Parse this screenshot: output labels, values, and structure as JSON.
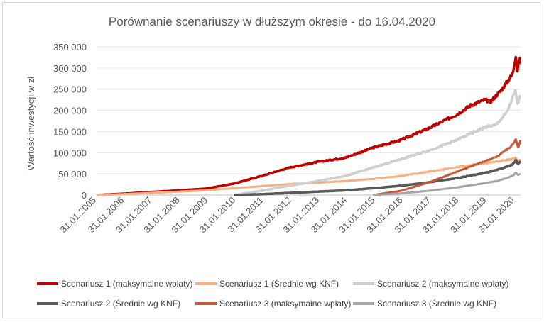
{
  "chart_data": {
    "type": "line",
    "title": "Porównanie scenariuszy w dłuższym okresie - do 16.04.2020",
    "xlabel": "",
    "ylabel": "Wartość inwestycji w zł",
    "ylim": [
      0,
      350000
    ],
    "yticks": [
      0,
      50000,
      100000,
      150000,
      200000,
      250000,
      300000,
      350000
    ],
    "ytick_labels": [
      "0",
      "50 000",
      "100 000",
      "150 000",
      "200 000",
      "250 000",
      "300 000",
      "350 000"
    ],
    "x_range": [
      2005.08,
      2020.29
    ],
    "xtick_labels": [
      "31.01.2005",
      "31.01.2006",
      "31.01.2007",
      "31.01.2008",
      "31.01.2009",
      "31.01.2010",
      "31.01.2011",
      "31.01.2012",
      "31.01.2013",
      "31.01.2014",
      "31.01.2015",
      "31.01.2016",
      "31.01.2017",
      "31.01.2018",
      "31.01.2019",
      "31.01.2020"
    ],
    "grid": true,
    "legend_position": "bottom",
    "series": [
      {
        "name": "Scenariusz 1 (maksymalne wpłaty)",
        "color": "#c00000",
        "width": 3.5,
        "points": [
          [
            2005.08,
            0
          ],
          [
            2006,
            3000
          ],
          [
            2007,
            7000
          ],
          [
            2008,
            11000
          ],
          [
            2009,
            15000
          ],
          [
            2010,
            27000
          ],
          [
            2011,
            45000
          ],
          [
            2012,
            65000
          ],
          [
            2013,
            78000
          ],
          [
            2014,
            88000
          ],
          [
            2015,
            112000
          ],
          [
            2016,
            130000
          ],
          [
            2017,
            158000
          ],
          [
            2018,
            190000
          ],
          [
            2018.5,
            212000
          ],
          [
            2019,
            225000
          ],
          [
            2019.2,
            220000
          ],
          [
            2019.6,
            248000
          ],
          [
            2020,
            285000
          ],
          [
            2020.12,
            330000
          ],
          [
            2020.18,
            295000
          ],
          [
            2020.22,
            310000
          ],
          [
            2020.29,
            325000
          ]
        ]
      },
      {
        "name": "Scenariusz 1 (Średnie wg KNF)",
        "color": "#f4b183",
        "width": 3,
        "points": [
          [
            2005.08,
            0
          ],
          [
            2006,
            2000
          ],
          [
            2007,
            5000
          ],
          [
            2008,
            8000
          ],
          [
            2009,
            11000
          ],
          [
            2010,
            16000
          ],
          [
            2011,
            21000
          ],
          [
            2012,
            26000
          ],
          [
            2013,
            29000
          ],
          [
            2014,
            33000
          ],
          [
            2015,
            38000
          ],
          [
            2016,
            45000
          ],
          [
            2017,
            55000
          ],
          [
            2018,
            66000
          ],
          [
            2019,
            75000
          ],
          [
            2019.5,
            80000
          ],
          [
            2020,
            85000
          ],
          [
            2020.12,
            88000
          ],
          [
            2020.18,
            80000
          ],
          [
            2020.29,
            84000
          ]
        ]
      },
      {
        "name": "Scenariusz 2 (maksymalne wpłaty)",
        "color": "#d0cece",
        "width": 3.5,
        "points": [
          [
            2010,
            0
          ],
          [
            2011,
            10000
          ],
          [
            2012,
            22000
          ],
          [
            2013,
            33000
          ],
          [
            2014,
            45000
          ],
          [
            2015,
            65000
          ],
          [
            2016,
            85000
          ],
          [
            2017,
            105000
          ],
          [
            2018,
            130000
          ],
          [
            2019,
            160000
          ],
          [
            2019.4,
            165000
          ],
          [
            2019.8,
            195000
          ],
          [
            2020.1,
            245000
          ],
          [
            2020.18,
            215000
          ],
          [
            2020.29,
            235000
          ]
        ]
      },
      {
        "name": "Scenariusz 2 (Średnie wg KNF)",
        "color": "#595959",
        "width": 3.5,
        "points": [
          [
            2010,
            0
          ],
          [
            2011,
            2000
          ],
          [
            2012,
            5000
          ],
          [
            2013,
            8000
          ],
          [
            2014,
            11000
          ],
          [
            2015,
            16000
          ],
          [
            2016,
            22000
          ],
          [
            2017,
            30000
          ],
          [
            2018,
            40000
          ],
          [
            2019,
            52000
          ],
          [
            2019.5,
            60000
          ],
          [
            2020,
            72000
          ],
          [
            2020.12,
            82000
          ],
          [
            2020.2,
            74000
          ],
          [
            2020.29,
            80000
          ]
        ]
      },
      {
        "name": "Scenariusz 3 (maksymalne wpłaty)",
        "color": "#c55a3a",
        "width": 3,
        "points": [
          [
            2015,
            0
          ],
          [
            2016,
            10000
          ],
          [
            2017,
            30000
          ],
          [
            2018,
            55000
          ],
          [
            2019,
            80000
          ],
          [
            2019.5,
            92000
          ],
          [
            2020,
            118000
          ],
          [
            2020.12,
            132000
          ],
          [
            2020.2,
            112000
          ],
          [
            2020.29,
            130000
          ]
        ]
      },
      {
        "name": "Scenariusz 3 (Średnie wg KNF)",
        "color": "#a6a6a6",
        "width": 3,
        "points": [
          [
            2015,
            0
          ],
          [
            2016,
            4000
          ],
          [
            2017,
            10000
          ],
          [
            2018,
            18000
          ],
          [
            2019,
            28000
          ],
          [
            2019.5,
            34000
          ],
          [
            2020,
            45000
          ],
          [
            2020.12,
            52000
          ],
          [
            2020.2,
            47000
          ],
          [
            2020.29,
            50000
          ]
        ]
      }
    ]
  }
}
